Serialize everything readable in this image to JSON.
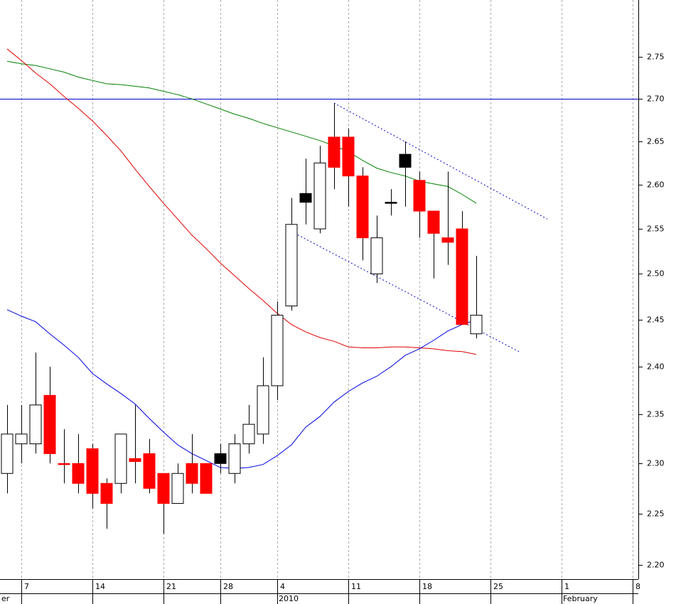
{
  "chart_data": {
    "type": "candlestick",
    "log_scale": true,
    "grid": true,
    "ylim": [
      2.186,
      2.82
    ],
    "yticks": [
      {
        "value": 2.2,
        "label": "2.20"
      },
      2.25,
      {
        "value": 2.3,
        "label": "2.30"
      },
      2.35,
      {
        "value": 2.4,
        "label": "2.40"
      },
      2.45,
      {
        "value": 2.5,
        "label": "2.50"
      },
      2.55,
      {
        "value": 2.6,
        "label": "2.60"
      },
      2.65,
      {
        "value": 2.7,
        "label": "2.70"
      },
      2.75
    ],
    "categories": [
      null,
      "7",
      null,
      null,
      null,
      null,
      "14",
      null,
      null,
      null,
      null,
      "21",
      null,
      null,
      null,
      "28",
      null,
      null,
      null,
      "4",
      null,
      null,
      null,
      null,
      "11",
      null,
      null,
      null,
      null,
      "18",
      null,
      null,
      null,
      null,
      "25",
      null,
      null,
      null,
      null,
      "1",
      null,
      null,
      null,
      null,
      "8"
    ],
    "month_labels": [
      {
        "label": "er",
        "index": -0.5
      },
      {
        "label": "2010",
        "index": 19
      },
      {
        "label": "February",
        "index": 39
      }
    ],
    "open": [
      2.29,
      2.32,
      2.32,
      2.37,
      2.3,
      2.3,
      2.315,
      2.28,
      2.28,
      2.305,
      2.31,
      2.29,
      2.26,
      2.3,
      2.3,
      2.3,
      2.29,
      2.32,
      2.33,
      2.38,
      2.465,
      2.58,
      2.55,
      2.655,
      2.655,
      2.61,
      2.5,
      2.58,
      2.62,
      2.605,
      2.57,
      2.54,
      2.55,
      2.435,
      null,
      null,
      null,
      null,
      null,
      null,
      null,
      null,
      null,
      null,
      null
    ],
    "high": [
      2.36,
      2.36,
      2.415,
      2.4,
      2.335,
      2.33,
      2.32,
      2.285,
      2.33,
      2.36,
      2.325,
      2.29,
      2.3,
      2.33,
      2.3,
      2.32,
      2.33,
      2.36,
      2.41,
      2.47,
      2.585,
      2.63,
      2.645,
      2.695,
      2.665,
      2.62,
      2.565,
      2.595,
      2.65,
      2.615,
      2.57,
      2.615,
      2.57,
      2.52,
      null,
      null,
      null,
      null,
      null,
      null,
      null,
      null,
      null,
      null,
      null
    ],
    "low": [
      2.27,
      2.3,
      2.31,
      2.3,
      2.28,
      2.27,
      2.255,
      2.235,
      2.27,
      2.28,
      2.27,
      2.23,
      2.26,
      2.27,
      2.27,
      2.29,
      2.28,
      2.31,
      2.32,
      2.365,
      2.46,
      2.555,
      2.545,
      2.595,
      2.575,
      2.515,
      2.49,
      2.565,
      2.575,
      2.54,
      2.495,
      2.51,
      2.445,
      2.43,
      null,
      null,
      null,
      null,
      null,
      null,
      null,
      null,
      null,
      null,
      null
    ],
    "close": [
      2.33,
      2.33,
      2.36,
      2.31,
      2.3,
      2.28,
      2.27,
      2.26,
      2.33,
      2.302,
      2.275,
      2.26,
      2.29,
      2.28,
      2.27,
      2.31,
      2.32,
      2.34,
      2.38,
      2.455,
      2.555,
      2.59,
      2.625,
      2.62,
      2.61,
      2.54,
      2.54,
      2.58,
      2.635,
      2.57,
      2.545,
      2.535,
      2.445,
      2.455,
      null,
      null,
      null,
      null,
      null,
      null,
      null,
      null,
      null,
      null,
      null
    ],
    "fills": [
      "#ffffff",
      "#ffffff",
      "#ffffff",
      "#ff0000",
      "#ff0000",
      "#ff0000",
      "#ff0000",
      "#ff0000",
      "#ffffff",
      "#ff0000",
      "#ff0000",
      "#ff0000",
      "#ffffff",
      "#ff0000",
      "#ff0000",
      "#000000",
      "#ffffff",
      "#ffffff",
      "#ffffff",
      "#ffffff",
      "#ffffff",
      "#000000",
      "#ffffff",
      "#ff0000",
      "#ff0000",
      "#ff0000",
      "#ffffff",
      "#000000",
      "#000000",
      "#ff0000",
      "#ff0000",
      "#ff0000",
      "#ff0000",
      "#ffffff",
      null,
      null,
      null,
      null,
      null,
      null,
      null,
      null,
      null,
      null,
      null
    ],
    "lines": [
      {
        "color": "#008000",
        "values": [
          2.745,
          2.742,
          2.74,
          2.736,
          2.732,
          2.726,
          2.722,
          2.718,
          2.717,
          2.715,
          2.713,
          2.709,
          2.705,
          2.7,
          2.694,
          2.688,
          2.682,
          2.677,
          2.671,
          2.666,
          2.661,
          2.656,
          2.651,
          2.645,
          2.638,
          2.628,
          2.619,
          2.614,
          2.61,
          2.604,
          2.601,
          2.598,
          2.589,
          2.579,
          null,
          null,
          null,
          null,
          null,
          null,
          null,
          null,
          null,
          null,
          null
        ]
      },
      {
        "color": "#e00000",
        "values": [
          2.76,
          2.746,
          2.731,
          2.718,
          2.703,
          2.689,
          2.674,
          2.657,
          2.639,
          2.618,
          2.598,
          2.579,
          2.561,
          2.543,
          2.528,
          2.512,
          2.498,
          2.484,
          2.471,
          2.457,
          2.445,
          2.437,
          2.431,
          2.427,
          2.421,
          2.42,
          2.42,
          2.421,
          2.421,
          2.42,
          2.419,
          2.417,
          2.416,
          2.413,
          null,
          null,
          null,
          null,
          null,
          null,
          null,
          null,
          null,
          null,
          null
        ]
      },
      {
        "color": "#0000e0",
        "values": [
          2.461,
          2.454,
          2.448,
          2.435,
          2.423,
          2.41,
          2.393,
          2.382,
          2.372,
          2.361,
          2.346,
          2.332,
          2.319,
          2.31,
          2.303,
          2.296,
          2.295,
          2.296,
          2.299,
          2.308,
          2.319,
          2.337,
          2.348,
          2.363,
          2.374,
          2.383,
          2.39,
          2.4,
          2.412,
          2.419,
          2.428,
          2.438,
          2.445,
          2.45,
          null,
          null,
          null,
          null,
          null,
          null,
          null,
          null,
          null,
          null,
          null
        ]
      }
    ],
    "hlines": [
      {
        "value": 2.7,
        "color": "#0000cc"
      }
    ],
    "trendlines": [
      {
        "color": "#0000cc",
        "x": [
          23,
          38
        ],
        "y": [
          2.695,
          2.561
        ]
      },
      {
        "color": "#0000cc",
        "x": [
          20,
          36
        ],
        "y": [
          2.547,
          2.416
        ]
      }
    ]
  }
}
